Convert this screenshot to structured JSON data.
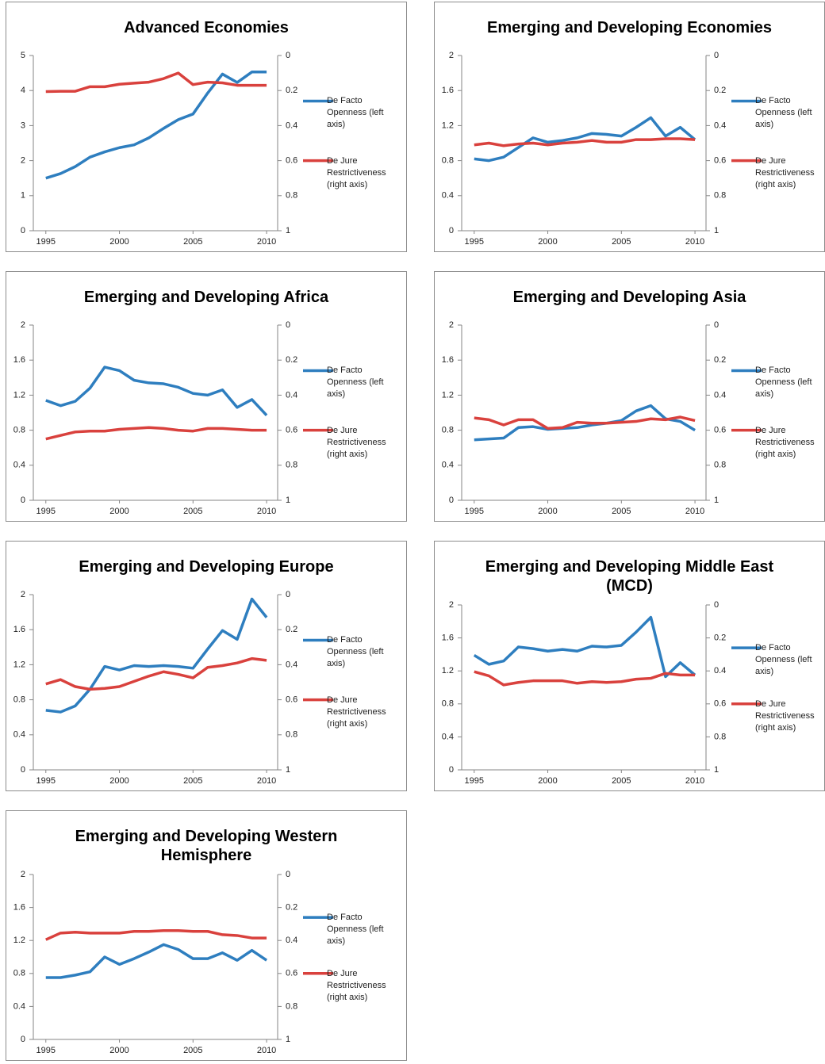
{
  "chart_data": [
    {
      "type": "line",
      "title": "Advanced Economies",
      "x": [
        1995,
        1996,
        1997,
        1998,
        1999,
        2000,
        2001,
        2002,
        2003,
        2004,
        2005,
        2006,
        2007,
        2008,
        2009,
        2010
      ],
      "xlim": [
        1994.15,
        2010.75
      ],
      "xticks": [
        1995,
        2000,
        2005,
        2010
      ],
      "ylim": [
        0,
        5
      ],
      "yticks": [
        0,
        1,
        2,
        3,
        4,
        5
      ],
      "y2lim": [
        1,
        0
      ],
      "y2ticks": [
        0,
        0.2,
        0.4,
        0.6,
        0.8,
        1
      ],
      "grid": false,
      "legend": "right",
      "series": [
        {
          "name": "De Facto Openness (left axis)",
          "color": "#2e7ebf",
          "values": [
            1.5,
            1.63,
            1.83,
            2.1,
            2.25,
            2.37,
            2.45,
            2.65,
            2.92,
            3.17,
            3.33,
            3.93,
            4.47,
            4.23,
            4.53,
            4.53
          ]
        },
        {
          "name": "De Jure Restrictiveness (right axis)",
          "color": "#d9413d",
          "axis": "y2",
          "values": [
            0.206,
            0.204,
            0.204,
            0.178,
            0.178,
            0.164,
            0.158,
            0.152,
            0.132,
            0.1,
            0.166,
            0.152,
            0.156,
            0.17,
            0.17,
            0.17
          ]
        }
      ]
    },
    {
      "type": "line",
      "title": "Emerging and Developing Economies",
      "x": [
        1995,
        1996,
        1997,
        1998,
        1999,
        2000,
        2001,
        2002,
        2003,
        2004,
        2005,
        2006,
        2007,
        2008,
        2009,
        2010
      ],
      "xlim": [
        1994.15,
        2010.75
      ],
      "xticks": [
        1995,
        2000,
        2005,
        2010
      ],
      "ylim": [
        0,
        2
      ],
      "yticks": [
        0,
        0.4,
        0.8,
        1.2,
        1.6,
        2
      ],
      "y2lim": [
        1,
        0
      ],
      "y2ticks": [
        0,
        0.2,
        0.4,
        0.6,
        0.8,
        1
      ],
      "grid": false,
      "legend": "right",
      "series": [
        {
          "name": "De Facto Openness (left axis)",
          "color": "#2e7ebf",
          "values": [
            0.82,
            0.8,
            0.84,
            0.95,
            1.06,
            1.01,
            1.03,
            1.06,
            1.11,
            1.1,
            1.08,
            1.18,
            1.29,
            1.08,
            1.18,
            1.04
          ]
        },
        {
          "name": "De Jure Restrictiveness (right axis)",
          "color": "#d9413d",
          "axis": "y2",
          "values": [
            0.51,
            0.5,
            0.515,
            0.505,
            0.5,
            0.51,
            0.5,
            0.495,
            0.485,
            0.495,
            0.495,
            0.48,
            0.48,
            0.475,
            0.475,
            0.48
          ]
        }
      ]
    },
    {
      "type": "line",
      "title": "Emerging and Developing Africa",
      "x": [
        1995,
        1996,
        1997,
        1998,
        1999,
        2000,
        2001,
        2002,
        2003,
        2004,
        2005,
        2006,
        2007,
        2008,
        2009,
        2010
      ],
      "xlim": [
        1994.15,
        2010.75
      ],
      "xticks": [
        1995,
        2000,
        2005,
        2010
      ],
      "ylim": [
        0,
        2
      ],
      "yticks": [
        0,
        0.4,
        0.8,
        1.2,
        1.6,
        2
      ],
      "y2lim": [
        1,
        0
      ],
      "y2ticks": [
        0,
        0.2,
        0.4,
        0.6,
        0.8,
        1
      ],
      "grid": false,
      "legend": "right",
      "series": [
        {
          "name": "De Facto Openness (left axis)",
          "color": "#2e7ebf",
          "values": [
            1.14,
            1.08,
            1.13,
            1.28,
            1.52,
            1.48,
            1.37,
            1.34,
            1.33,
            1.29,
            1.22,
            1.2,
            1.26,
            1.06,
            1.15,
            0.97
          ]
        },
        {
          "name": "De Jure Restrictiveness (right axis)",
          "color": "#d9413d",
          "axis": "y2",
          "values": [
            0.65,
            0.63,
            0.61,
            0.605,
            0.605,
            0.595,
            0.59,
            0.585,
            0.59,
            0.6,
            0.605,
            0.59,
            0.59,
            0.595,
            0.6,
            0.6
          ]
        }
      ]
    },
    {
      "type": "line",
      "title": "Emerging and Developing Asia",
      "x": [
        1995,
        1996,
        1997,
        1998,
        1999,
        2000,
        2001,
        2002,
        2003,
        2004,
        2005,
        2006,
        2007,
        2008,
        2009,
        2010
      ],
      "xlim": [
        1994.15,
        2010.75
      ],
      "xticks": [
        1995,
        2000,
        2005,
        2010
      ],
      "ylim": [
        0,
        2
      ],
      "yticks": [
        0,
        0.4,
        0.8,
        1.2,
        1.6,
        2
      ],
      "y2lim": [
        1,
        0
      ],
      "y2ticks": [
        0,
        0.2,
        0.4,
        0.6,
        0.8,
        1
      ],
      "grid": false,
      "legend": "right",
      "series": [
        {
          "name": "De Facto Openness (left axis)",
          "color": "#2e7ebf",
          "values": [
            0.69,
            0.7,
            0.71,
            0.83,
            0.84,
            0.81,
            0.82,
            0.83,
            0.86,
            0.88,
            0.91,
            1.02,
            1.08,
            0.93,
            0.9,
            0.8
          ]
        },
        {
          "name": "De Jure Restrictiveness (right axis)",
          "color": "#d9413d",
          "axis": "y2",
          "values": [
            0.53,
            0.54,
            0.57,
            0.54,
            0.54,
            0.59,
            0.585,
            0.555,
            0.56,
            0.56,
            0.555,
            0.55,
            0.535,
            0.54,
            0.525,
            0.545
          ]
        }
      ]
    },
    {
      "type": "line",
      "title": "Emerging and Developing Europe",
      "x": [
        1995,
        1996,
        1997,
        1998,
        1999,
        2000,
        2001,
        2002,
        2003,
        2004,
        2005,
        2006,
        2007,
        2008,
        2009,
        2010
      ],
      "xlim": [
        1994.15,
        2010.75
      ],
      "xticks": [
        1995,
        2000,
        2005,
        2010
      ],
      "ylim": [
        0,
        2
      ],
      "yticks": [
        0,
        0.4,
        0.8,
        1.2,
        1.6,
        2
      ],
      "y2lim": [
        1,
        0
      ],
      "y2ticks": [
        0,
        0.2,
        0.4,
        0.6,
        0.8,
        1
      ],
      "grid": false,
      "legend": "right",
      "series": [
        {
          "name": "De Facto Openness (left axis)",
          "color": "#2e7ebf",
          "values": [
            0.68,
            0.66,
            0.73,
            0.92,
            1.18,
            1.14,
            1.19,
            1.18,
            1.19,
            1.18,
            1.16,
            1.38,
            1.59,
            1.49,
            1.95,
            1.74
          ]
        },
        {
          "name": "De Jure Restrictiveness (right axis)",
          "color": "#d9413d",
          "axis": "y2",
          "values": [
            0.51,
            0.485,
            0.525,
            0.54,
            0.535,
            0.525,
            0.495,
            0.465,
            0.44,
            0.455,
            0.475,
            0.415,
            0.405,
            0.39,
            0.365,
            0.375
          ]
        }
      ]
    },
    {
      "type": "line",
      "title": "Emerging and Developing Middle East (MCD)",
      "x": [
        1995,
        1996,
        1997,
        1998,
        1999,
        2000,
        2001,
        2002,
        2003,
        2004,
        2005,
        2006,
        2007,
        2008,
        2009,
        2010
      ],
      "xlim": [
        1994.15,
        2010.75
      ],
      "xticks": [
        1995,
        2000,
        2005,
        2010
      ],
      "ylim": [
        0,
        2
      ],
      "yticks": [
        0,
        0.4,
        0.8,
        1.2,
        1.6,
        2
      ],
      "y2lim": [
        1,
        0
      ],
      "y2ticks": [
        0,
        0.2,
        0.4,
        0.6,
        0.8,
        1
      ],
      "grid": false,
      "legend": "right",
      "series": [
        {
          "name": "De Facto Openness (left axis)",
          "color": "#2e7ebf",
          "values": [
            1.39,
            1.28,
            1.32,
            1.49,
            1.47,
            1.44,
            1.46,
            1.44,
            1.5,
            1.49,
            1.51,
            1.67,
            1.85,
            1.13,
            1.3,
            1.15
          ]
        },
        {
          "name": "De Jure Restrictiveness (right axis)",
          "color": "#d9413d",
          "axis": "y2",
          "values": [
            0.405,
            0.43,
            0.485,
            0.47,
            0.46,
            0.46,
            0.46,
            0.475,
            0.465,
            0.47,
            0.465,
            0.45,
            0.445,
            0.415,
            0.425,
            0.425
          ]
        }
      ]
    },
    {
      "type": "line",
      "title": "Emerging and Developing Western Hemisphere",
      "x": [
        1995,
        1996,
        1997,
        1998,
        1999,
        2000,
        2001,
        2002,
        2003,
        2004,
        2005,
        2006,
        2007,
        2008,
        2009,
        2010
      ],
      "xlim": [
        1994.15,
        2010.75
      ],
      "xticks": [
        1995,
        2000,
        2005,
        2010
      ],
      "ylim": [
        0,
        2
      ],
      "yticks": [
        0,
        0.4,
        0.8,
        1.2,
        1.6,
        2
      ],
      "y2lim": [
        1,
        0
      ],
      "y2ticks": [
        0,
        0.2,
        0.4,
        0.6,
        0.8,
        1
      ],
      "grid": false,
      "legend": "right",
      "series": [
        {
          "name": "De Facto Openness (left axis)",
          "color": "#2e7ebf",
          "values": [
            0.75,
            0.75,
            0.78,
            0.82,
            1.0,
            0.91,
            0.98,
            1.06,
            1.15,
            1.09,
            0.98,
            0.98,
            1.05,
            0.96,
            1.08,
            0.96
          ]
        },
        {
          "name": "De Jure Restrictiveness (right axis)",
          "color": "#d9413d",
          "axis": "y2",
          "values": [
            0.395,
            0.355,
            0.35,
            0.355,
            0.355,
            0.355,
            0.345,
            0.345,
            0.34,
            0.34,
            0.345,
            0.345,
            0.365,
            0.37,
            0.385,
            0.385
          ]
        }
      ]
    }
  ]
}
